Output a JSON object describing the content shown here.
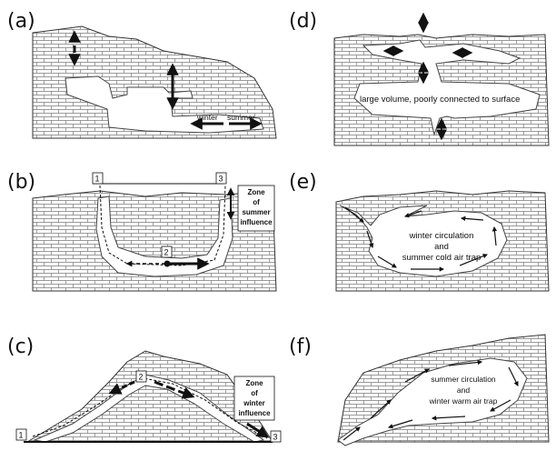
{
  "panels": {
    "a": {
      "label": "(a)",
      "arrow_labels": {
        "left": "winter",
        "right": "summer"
      }
    },
    "b": {
      "label": "(b)",
      "points": [
        "1",
        "2",
        "3"
      ],
      "zone": [
        "Zone",
        "of",
        "summer",
        "influence"
      ]
    },
    "c": {
      "label": "(c)",
      "points": [
        "1",
        "2",
        "3"
      ],
      "zone": [
        "Zone",
        "of",
        "winter",
        "influence"
      ]
    },
    "d": {
      "label": "(d)",
      "note": "large volume, poorly connected to surface"
    },
    "e": {
      "label": "(e)",
      "note": [
        "winter circulation",
        "and",
        "summer cold air trap"
      ]
    },
    "f": {
      "label": "(f)",
      "note": [
        "summer circulation",
        "and",
        "winter warm air trap"
      ]
    }
  },
  "colors": {
    "ink": "#1a1a1a",
    "rock": "#6a6a6a",
    "cave": "#ffffff"
  }
}
